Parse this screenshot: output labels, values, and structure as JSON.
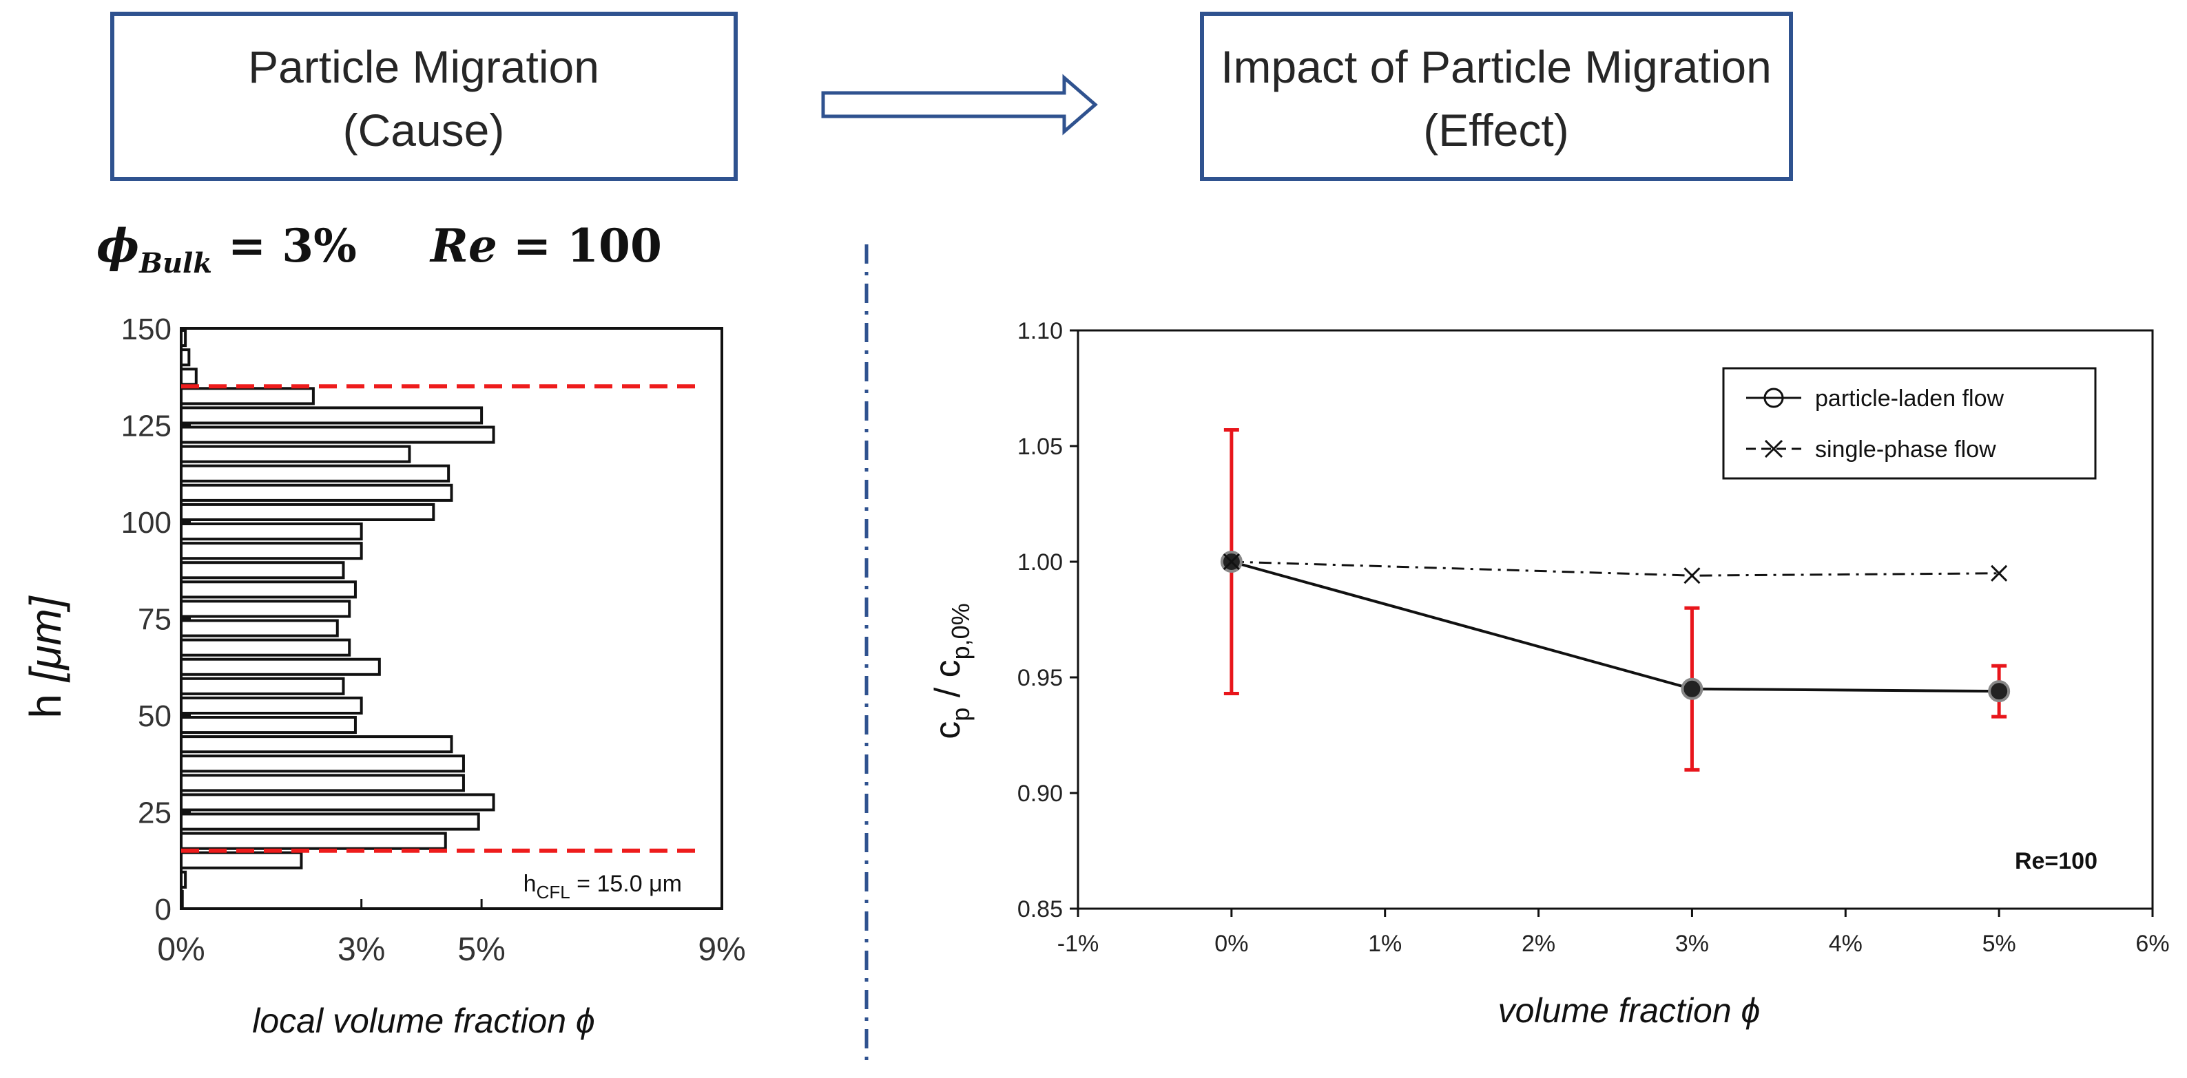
{
  "header": {
    "left_box": {
      "line1": "Particle Migration",
      "line2": "(Cause)"
    },
    "right_box": {
      "line1": "Impact of Particle Migration",
      "line2": "(Effect)"
    }
  },
  "params": {
    "phi_symbol": "ϕ",
    "bulk_sub": "Bulk",
    "bulk_rest": " = 3%",
    "re_label": "Re",
    "re_rest": " = 100"
  },
  "colors": {
    "box_border": "#2f528f",
    "error_bar": "#e8151b",
    "dashed_red": "#ee1c1c",
    "divider": "#2f528f"
  },
  "chart_data": [
    {
      "id": "histogram",
      "type": "bar",
      "orientation": "horizontal",
      "xlabel": "local volume fraction ϕ",
      "ylabel_main": "h ",
      "ylabel_unit": "[μm]",
      "xlim": [
        0,
        9
      ],
      "ylim": [
        0,
        150
      ],
      "xticks": [
        0,
        3,
        5,
        9
      ],
      "xtick_labels": [
        "0%",
        "3%",
        "5%",
        "9%"
      ],
      "yticks": [
        0,
        25,
        50,
        75,
        100,
        125,
        150
      ],
      "ytick_labels": [
        "0",
        "25",
        "50",
        "75",
        "100",
        "125",
        "150"
      ],
      "bin_width": 5,
      "bin_centers": [
        2.5,
        7.5,
        12.5,
        17.5,
        22.5,
        27.5,
        32.5,
        37.5,
        42.5,
        47.5,
        52.5,
        57.5,
        62.5,
        67.5,
        72.5,
        77.5,
        82.5,
        87.5,
        92.5,
        97.5,
        102.5,
        107.5,
        112.5,
        117.5,
        122.5,
        127.5,
        132.5,
        137.5,
        142.5,
        147.5
      ],
      "values": [
        0.02,
        0.07,
        2.0,
        4.4,
        4.95,
        5.2,
        4.7,
        4.7,
        4.5,
        2.9,
        3.0,
        2.7,
        3.3,
        2.8,
        2.6,
        2.8,
        2.9,
        2.7,
        3.0,
        3.0,
        4.2,
        4.5,
        4.45,
        3.8,
        5.2,
        5.0,
        2.2,
        0.25,
        0.13,
        0.07
      ],
      "cfl_lines": [
        15,
        135
      ],
      "annotation": {
        "prefix": "h",
        "subscript": "CFL",
        "suffix": " = 15.0 μm"
      }
    },
    {
      "id": "cp_ratio",
      "type": "line",
      "xlabel": "volume fraction ϕ",
      "ylabel": "c_p / c_p,0%",
      "ylabel_parts": {
        "c": "c",
        "sub1": "p",
        "slash": " / c",
        "sub2": "p,0%"
      },
      "xlim": [
        -1,
        6
      ],
      "ylim": [
        0.85,
        1.1
      ],
      "xticks": [
        -1,
        0,
        1,
        2,
        3,
        4,
        5,
        6
      ],
      "xtick_labels": [
        "-1%",
        "0%",
        "1%",
        "2%",
        "3%",
        "4%",
        "5%",
        "6%"
      ],
      "yticks": [
        0.85,
        0.9,
        0.95,
        1.0,
        1.05,
        1.1
      ],
      "ytick_labels": [
        "0.85",
        "0.90",
        "0.95",
        "1.00",
        "1.05",
        "1.10"
      ],
      "series": [
        {
          "name": "particle-laden flow",
          "marker": "circle",
          "line": "solid",
          "x": [
            0,
            3,
            5
          ],
          "y": [
            1.0,
            0.945,
            0.944
          ],
          "err_low": [
            0.943,
            0.91,
            0.933
          ],
          "err_high": [
            1.057,
            0.98,
            0.955
          ]
        },
        {
          "name": "single-phase flow",
          "marker": "x",
          "line": "dashdot",
          "x": [
            0,
            3,
            5
          ],
          "y": [
            1.0,
            0.994,
            0.995
          ]
        }
      ],
      "annotation": "Re=100",
      "legend_position": "top-right"
    }
  ]
}
